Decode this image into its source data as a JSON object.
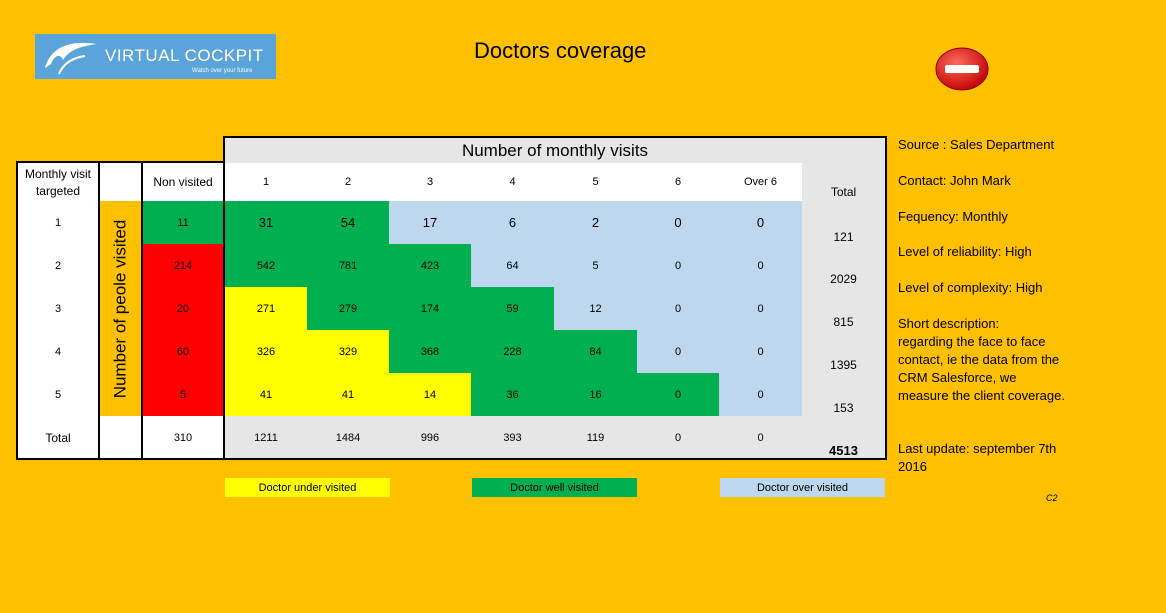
{
  "logo": {
    "brand": "VIRTUAL COCKPIT",
    "tagline": "Watch over your future"
  },
  "title": "Doctors coverage",
  "table": {
    "header_top": "Number of monthly visits",
    "row_header_label": "Monthly visit targeted",
    "vertical_label": "Number of peole visited",
    "col_headers": [
      "Non visited",
      "1",
      "2",
      "3",
      "4",
      "5",
      "6",
      "Over 6",
      "Total"
    ],
    "rows": [
      {
        "target": "1",
        "values": [
          "11",
          "31",
          "54",
          "17",
          "6",
          "2",
          "0",
          "0"
        ],
        "total": "121"
      },
      {
        "target": "2",
        "values": [
          "214",
          "542",
          "781",
          "423",
          "64",
          "5",
          "0",
          "0"
        ],
        "total": "2029"
      },
      {
        "target": "3",
        "values": [
          "20",
          "271",
          "279",
          "174",
          "59",
          "12",
          "0",
          "0"
        ],
        "total": "815"
      },
      {
        "target": "4",
        "values": [
          "60",
          "326",
          "329",
          "368",
          "228",
          "84",
          "0",
          "0"
        ],
        "total": "1395"
      },
      {
        "target": "5",
        "values": [
          "5",
          "41",
          "41",
          "14",
          "36",
          "16",
          "0",
          "0"
        ],
        "total": "153"
      }
    ],
    "total_row": {
      "label": "Total",
      "values": [
        "310",
        "1211",
        "1484",
        "996",
        "393",
        "119",
        "0",
        "0"
      ],
      "total": "4513"
    }
  },
  "colors": {
    "background": "#FFC000",
    "red": "#FF0000",
    "green": "#00B050",
    "yellow": "#FFFF00",
    "light_blue": "#BDD7EE",
    "gray": "#E7E6E6"
  },
  "legend": [
    "Doctor under visited",
    "Doctor well visited",
    "Doctor over visited"
  ],
  "info": {
    "source": "Source : Sales Department",
    "contact": "Contact: John Mark",
    "frequency": "Fequency: Monthly",
    "reliability": "Level of reliability: High",
    "complexity": "Level of complexity: High",
    "description_title": "Short description:",
    "description_body": "regarding the face to face contact, ie the data from the CRM Salesforce, we measure the client coverage.",
    "last_update": "Last update:  september 7th 2016",
    "code": "C2"
  },
  "icons": {
    "logo": "eagle-logo-icon",
    "status": "stop-icon"
  }
}
